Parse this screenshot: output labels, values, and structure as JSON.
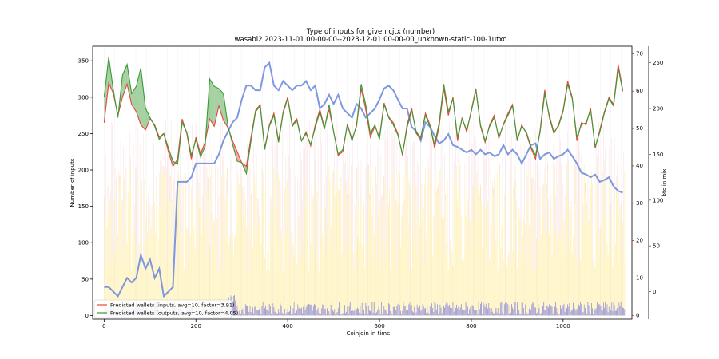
{
  "chart_data": {
    "type": "line",
    "title": "Type of inputs for given cjtx (number)",
    "subtitle": "wasabi2 2023-11-01 00-00-00--2023-12-01 00-00-00_unknown-static-100-1utxo",
    "xlabel": "Coinjoin in time",
    "ylabel": "Number of inputs",
    "ylabel_right_outer": "btc in mix",
    "xlim": [
      -25,
      1150
    ],
    "ylim": [
      -5,
      370
    ],
    "ylim_right_inner": [
      -1,
      72
    ],
    "ylim_right_outer": [
      -30,
      268
    ],
    "x_ticks": [
      0,
      200,
      400,
      600,
      800,
      1000
    ],
    "y_ticks": [
      0,
      50,
      100,
      150,
      200,
      250,
      300,
      350
    ],
    "y_ticks_right_inner": [
      0,
      10,
      20,
      30,
      40,
      50,
      60,
      70
    ],
    "y_ticks_right_outer": [
      0,
      50,
      100,
      150,
      200,
      250
    ],
    "legend_placement": "lower-left",
    "grid": false,
    "colors": {
      "inputs": "#e8453c",
      "outputs": "#3a9a34",
      "btc": "#6f8ddc",
      "bars_yellow": "#ffe98a",
      "bars_pink": "#f6c4c4",
      "bars_blue": "#3f3fe0",
      "right_inner_axis": "#d42020",
      "right_outer_axis": "#3a5cc8"
    },
    "series": [
      {
        "name": "Predicted wallets (inputs, avg=10, factor=3.91)",
        "axis": "left",
        "x": [
          0,
          10,
          20,
          30,
          40,
          50,
          60,
          70,
          80,
          90,
          100,
          110,
          120,
          130,
          140,
          150,
          160,
          170,
          180,
          190,
          200,
          210,
          220,
          230,
          240,
          250,
          260,
          270,
          280,
          290,
          300,
          310,
          320,
          330,
          340,
          350,
          360,
          370,
          380,
          390,
          400,
          410,
          420,
          430,
          440,
          450,
          460,
          470,
          480,
          490,
          500,
          510,
          520,
          530,
          540,
          550,
          560,
          570,
          580,
          590,
          600,
          610,
          620,
          630,
          640,
          650,
          660,
          670,
          680,
          690,
          700,
          710,
          720,
          730,
          740,
          750,
          760,
          770,
          780,
          790,
          800,
          810,
          820,
          830,
          840,
          850,
          860,
          870,
          880,
          890,
          900,
          910,
          920,
          930,
          940,
          950,
          960,
          970,
          980,
          990,
          1000,
          1010,
          1020,
          1030,
          1040,
          1050,
          1060,
          1070,
          1080,
          1090,
          1100,
          1110,
          1120,
          1130
        ],
        "values": [
          265,
          320,
          305,
          275,
          300,
          318,
          290,
          280,
          262,
          255,
          270,
          262,
          245,
          250,
          225,
          205,
          215,
          270,
          250,
          215,
          245,
          222,
          238,
          270,
          260,
          288,
          268,
          258,
          240,
          225,
          210,
          205,
          245,
          282,
          290,
          230,
          262,
          278,
          240,
          280,
          300,
          262,
          270,
          240,
          252,
          233,
          262,
          283,
          258,
          283,
          253,
          220,
          225,
          263,
          242,
          260,
          312,
          283,
          245,
          260,
          245,
          292,
          273,
          265,
          250,
          220,
          262,
          285,
          250,
          243,
          278,
          262,
          230,
          260,
          312,
          275,
          300,
          240,
          272,
          252,
          282,
          312,
          260,
          238,
          262,
          275,
          243,
          263,
          278,
          290,
          240,
          262,
          250,
          230,
          215,
          255,
          310,
          272,
          250,
          262,
          282,
          322,
          300,
          240,
          265,
          262,
          285,
          230,
          255,
          280,
          300,
          290,
          345,
          310
        ]
      },
      {
        "name": "Predicted wallets (outputs, avg=10, factor=4.05)",
        "axis": "left",
        "x": [
          0,
          10,
          20,
          30,
          40,
          50,
          60,
          70,
          80,
          90,
          100,
          110,
          120,
          130,
          140,
          150,
          160,
          170,
          180,
          190,
          200,
          210,
          220,
          230,
          240,
          250,
          260,
          270,
          280,
          290,
          300,
          310,
          320,
          330,
          340,
          350,
          360,
          370,
          380,
          390,
          400,
          410,
          420,
          430,
          440,
          450,
          460,
          470,
          480,
          490,
          500,
          510,
          520,
          530,
          540,
          550,
          560,
          570,
          580,
          590,
          600,
          610,
          620,
          630,
          640,
          650,
          660,
          670,
          680,
          690,
          700,
          710,
          720,
          730,
          740,
          750,
          760,
          770,
          780,
          790,
          800,
          810,
          820,
          830,
          840,
          850,
          860,
          870,
          880,
          890,
          900,
          910,
          920,
          930,
          940,
          950,
          960,
          970,
          980,
          990,
          1000,
          1010,
          1020,
          1030,
          1040,
          1050,
          1060,
          1070,
          1080,
          1090,
          1100,
          1110,
          1120,
          1130
        ],
        "values": [
          300,
          355,
          310,
          272,
          330,
          345,
          305,
          315,
          340,
          285,
          272,
          260,
          242,
          250,
          230,
          212,
          208,
          265,
          252,
          220,
          242,
          218,
          232,
          325,
          315,
          312,
          305,
          260,
          235,
          212,
          210,
          195,
          240,
          280,
          288,
          228,
          260,
          275,
          238,
          278,
          298,
          260,
          268,
          240,
          250,
          235,
          258,
          280,
          256,
          290,
          252,
          222,
          228,
          262,
          240,
          262,
          318,
          290,
          250,
          262,
          242,
          290,
          272,
          262,
          248,
          222,
          258,
          282,
          252,
          245,
          275,
          260,
          235,
          265,
          318,
          280,
          298,
          245,
          270,
          255,
          280,
          310,
          262,
          240,
          260,
          272,
          245,
          262,
          275,
          288,
          242,
          260,
          252,
          232,
          220,
          252,
          305,
          275,
          252,
          260,
          280,
          318,
          298,
          245,
          262,
          265,
          282,
          232,
          252,
          278,
          298,
          288,
          340,
          308
        ]
      },
      {
        "name": "",
        "axis": "right_outer",
        "x": [
          0,
          10,
          20,
          30,
          40,
          50,
          60,
          70,
          80,
          90,
          100,
          110,
          120,
          130,
          140,
          150,
          160,
          170,
          180,
          190,
          200,
          210,
          220,
          230,
          240,
          250,
          260,
          270,
          280,
          290,
          300,
          310,
          320,
          330,
          340,
          350,
          360,
          370,
          380,
          390,
          400,
          410,
          420,
          430,
          440,
          450,
          460,
          470,
          480,
          490,
          500,
          510,
          520,
          530,
          540,
          550,
          560,
          570,
          580,
          590,
          600,
          610,
          620,
          630,
          640,
          650,
          660,
          670,
          680,
          690,
          700,
          710,
          720,
          730,
          740,
          750,
          760,
          770,
          780,
          790,
          800,
          810,
          820,
          830,
          840,
          850,
          860,
          870,
          880,
          890,
          900,
          910,
          920,
          930,
          940,
          950,
          960,
          970,
          980,
          990,
          1000,
          1010,
          1020,
          1030,
          1040,
          1050,
          1060,
          1070,
          1080,
          1090,
          1100,
          1110,
          1120,
          1130
        ],
        "values": [
          5,
          5,
          0,
          -5,
          5,
          15,
          10,
          15,
          40,
          25,
          35,
          15,
          25,
          -5,
          0,
          5,
          120,
          120,
          120,
          125,
          140,
          140,
          140,
          140,
          140,
          150,
          165,
          175,
          185,
          190,
          210,
          225,
          225,
          220,
          220,
          245,
          250,
          225,
          220,
          230,
          225,
          220,
          225,
          225,
          230,
          220,
          225,
          200,
          205,
          215,
          205,
          215,
          200,
          195,
          190,
          205,
          200,
          190,
          195,
          200,
          210,
          222,
          225,
          220,
          210,
          200,
          200,
          180,
          175,
          165,
          185,
          180,
          170,
          162,
          165,
          172,
          160,
          158,
          155,
          152,
          155,
          150,
          155,
          150,
          152,
          148,
          150,
          160,
          150,
          155,
          150,
          140,
          150,
          160,
          162,
          145,
          150,
          152,
          145,
          148,
          150,
          155,
          148,
          140,
          130,
          128,
          125,
          128,
          120,
          122,
          125,
          115,
          110,
          108
        ]
      }
    ],
    "legend": [
      "Predicted wallets (inputs, avg=10, factor=3.91)",
      "Predicted wallets (outputs, avg=10, factor=4.05)"
    ]
  }
}
